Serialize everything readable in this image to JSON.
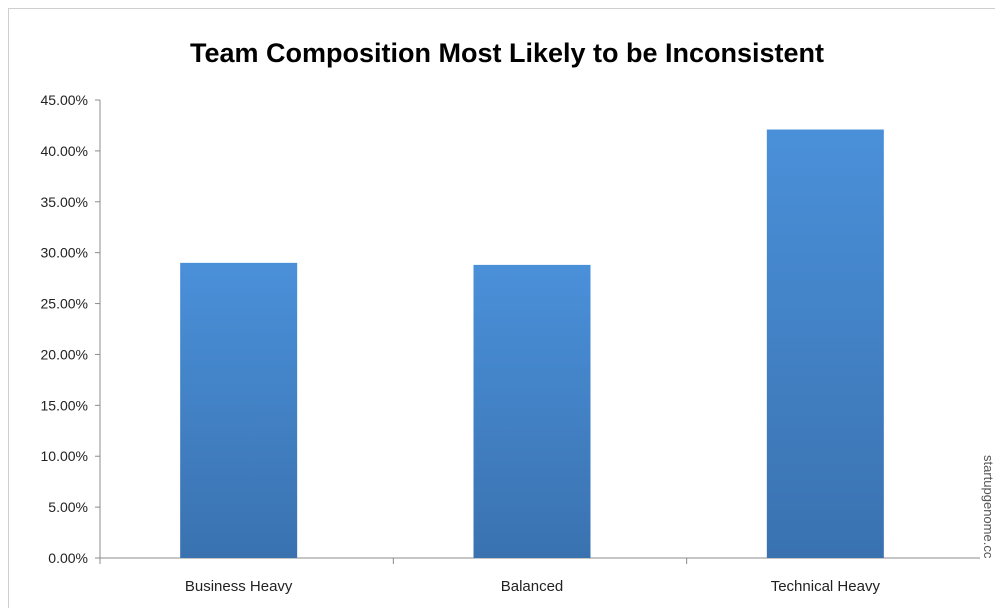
{
  "chart_data": {
    "type": "bar",
    "title": "Team Composition Most Likely to be Inconsistent",
    "categories": [
      "Business Heavy",
      "Balanced",
      "Technical Heavy"
    ],
    "values": [
      0.29,
      0.288,
      0.421
    ],
    "ylim": [
      0,
      0.45
    ],
    "yticks": [
      "0.00%",
      "5.00%",
      "10.00%",
      "15.00%",
      "20.00%",
      "25.00%",
      "30.00%",
      "35.00%",
      "40.00%",
      "45.00%"
    ],
    "ytick_values": [
      0,
      0.05,
      0.1,
      0.15,
      0.2,
      0.25,
      0.3,
      0.35,
      0.4,
      0.45
    ],
    "xlabel": "",
    "ylabel": "",
    "grid": false,
    "legend": "none",
    "bar_color_top": "#4a90d9",
    "bar_color_bottom": "#3a72b0"
  },
  "watermark": "startupgenome.cc"
}
